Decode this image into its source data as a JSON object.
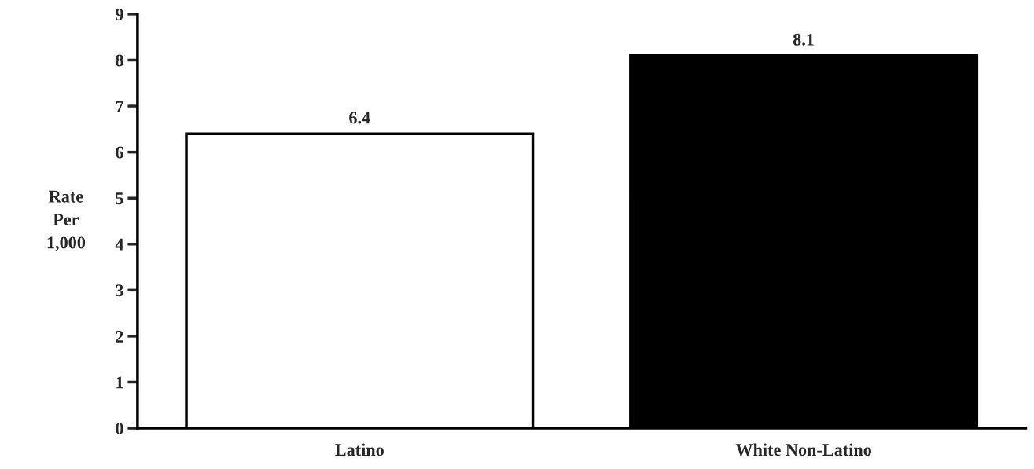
{
  "chart_data": {
    "type": "bar",
    "categories": [
      "Latino",
      "White Non-Latino"
    ],
    "values": [
      6.4,
      8.1
    ],
    "colors": [
      "#ffffff",
      "#000000"
    ],
    "ylabel": "Rate\nPer\n1,000",
    "ylim": [
      0,
      9
    ],
    "yticks": [
      0,
      1,
      2,
      3,
      4,
      5,
      6,
      7,
      8,
      9
    ],
    "data_labels": true,
    "grid": false,
    "legend": false
  }
}
